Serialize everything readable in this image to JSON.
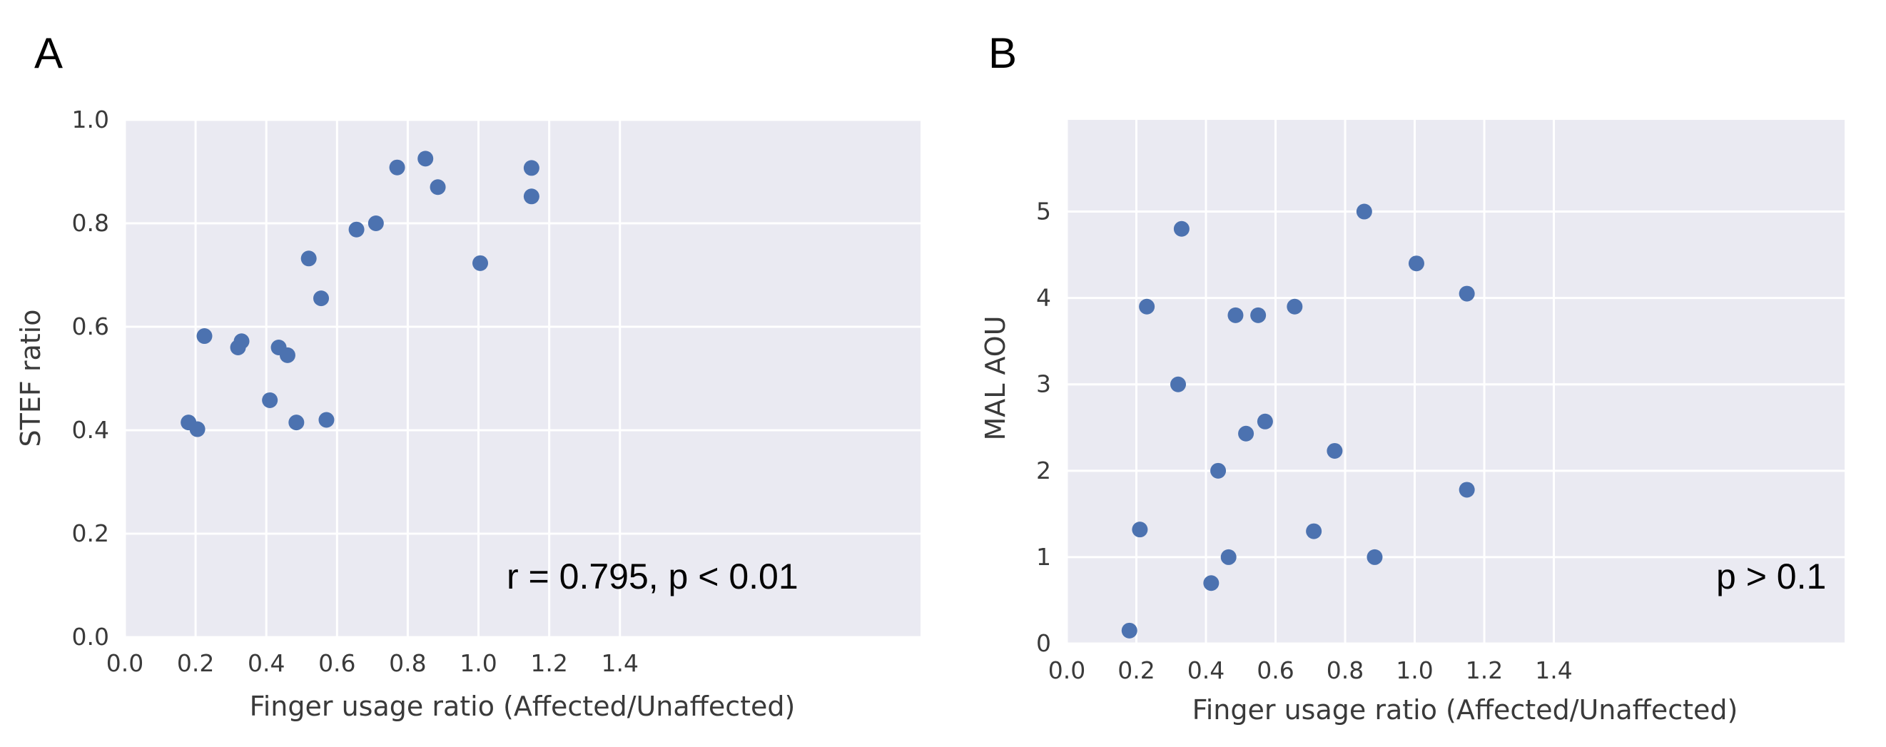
{
  "chart_data": [
    {
      "panel": "A",
      "type": "scatter",
      "xlabel": "Finger usage ratio (Affected/Unaffected)",
      "ylabel": "STEF ratio",
      "xlim": [
        0,
        1.5
      ],
      "ylim": [
        0,
        1.0
      ],
      "xticks": [
        "0.0",
        "0.2",
        "0.4",
        "0.6",
        "0.8",
        "1.0",
        "1.2",
        "1.4"
      ],
      "yticks": [
        "0.0",
        "0.2",
        "0.4",
        "0.6",
        "0.8",
        "1.0"
      ],
      "grid": true,
      "annotation": "r = 0.795, p < 0.01",
      "color": "#4c72b0",
      "points": [
        {
          "x": 0.18,
          "y": 0.415
        },
        {
          "x": 0.205,
          "y": 0.402
        },
        {
          "x": 0.225,
          "y": 0.582
        },
        {
          "x": 0.32,
          "y": 0.56
        },
        {
          "x": 0.33,
          "y": 0.572
        },
        {
          "x": 0.41,
          "y": 0.458
        },
        {
          "x": 0.435,
          "y": 0.56
        },
        {
          "x": 0.46,
          "y": 0.545
        },
        {
          "x": 0.485,
          "y": 0.415
        },
        {
          "x": 0.52,
          "y": 0.732
        },
        {
          "x": 0.555,
          "y": 0.655
        },
        {
          "x": 0.57,
          "y": 0.42
        },
        {
          "x": 0.655,
          "y": 0.788
        },
        {
          "x": 0.71,
          "y": 0.8
        },
        {
          "x": 0.77,
          "y": 0.908
        },
        {
          "x": 0.85,
          "y": 0.925
        },
        {
          "x": 0.885,
          "y": 0.87
        },
        {
          "x": 1.005,
          "y": 0.723
        },
        {
          "x": 1.15,
          "y": 0.907
        },
        {
          "x": 1.15,
          "y": 0.852
        }
      ]
    },
    {
      "panel": "B",
      "type": "scatter",
      "xlabel": "Finger usage ratio (Affected/Unaffected)",
      "ylabel": "MAL AOU",
      "xlim": [
        0,
        1.5
      ],
      "ylim": [
        0,
        5.5
      ],
      "xticks": [
        "0.0",
        "0.2",
        "0.4",
        "0.6",
        "0.8",
        "1.0",
        "1.2",
        "1.4"
      ],
      "yticks": [
        "0",
        "1",
        "2",
        "3",
        "4",
        "5"
      ],
      "grid": true,
      "annotation": "p > 0.1",
      "color": "#4c72b0",
      "points": [
        {
          "x": 0.18,
          "y": 0.15
        },
        {
          "x": 0.21,
          "y": 1.32
        },
        {
          "x": 0.23,
          "y": 3.9
        },
        {
          "x": 0.32,
          "y": 3.0
        },
        {
          "x": 0.33,
          "y": 4.8
        },
        {
          "x": 0.415,
          "y": 0.7
        },
        {
          "x": 0.435,
          "y": 2.0
        },
        {
          "x": 0.465,
          "y": 1.0
        },
        {
          "x": 0.485,
          "y": 3.8
        },
        {
          "x": 0.515,
          "y": 2.43
        },
        {
          "x": 0.55,
          "y": 3.8
        },
        {
          "x": 0.57,
          "y": 2.57
        },
        {
          "x": 0.655,
          "y": 3.9
        },
        {
          "x": 0.71,
          "y": 1.3
        },
        {
          "x": 0.77,
          "y": 2.23
        },
        {
          "x": 0.855,
          "y": 5.0
        },
        {
          "x": 0.885,
          "y": 1.0
        },
        {
          "x": 1.005,
          "y": 4.4
        },
        {
          "x": 1.15,
          "y": 4.05
        },
        {
          "x": 1.15,
          "y": 1.78
        }
      ]
    }
  ]
}
